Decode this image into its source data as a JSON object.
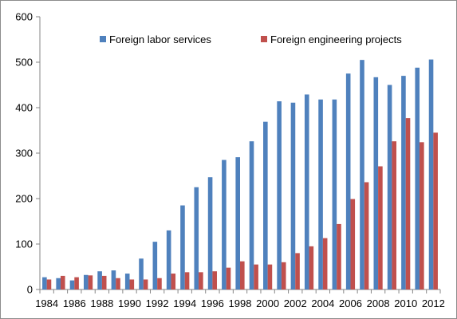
{
  "chart_data": {
    "type": "bar",
    "title": "",
    "xlabel": "",
    "ylabel": "",
    "ylim": [
      0,
      600
    ],
    "yticks": [
      0,
      100,
      200,
      300,
      400,
      500,
      600
    ],
    "grid": false,
    "legend_position": "top",
    "categories": [
      "1984",
      "1985",
      "1986",
      "1987",
      "1988",
      "1989",
      "1990",
      "1991",
      "1992",
      "1993",
      "1994",
      "1995",
      "1996",
      "1997",
      "1998",
      "1999",
      "2000",
      "2001",
      "2002",
      "2003",
      "2004",
      "2005",
      "2006",
      "2007",
      "2008",
      "2009",
      "2010",
      "2011",
      "2012"
    ],
    "xtick_labels": [
      "1984",
      "1986",
      "1988",
      "1990",
      "1992",
      "1994",
      "1996",
      "1998",
      "2000",
      "2002",
      "2004",
      "2006",
      "2008",
      "2010",
      "2012"
    ],
    "series": [
      {
        "name": "Foreign labor services",
        "color": "#4f81bd",
        "values": [
          27,
          25,
          20,
          32,
          40,
          42,
          35,
          68,
          105,
          130,
          185,
          225,
          247,
          285,
          291,
          326,
          369,
          414,
          411,
          429,
          418,
          418,
          475,
          505,
          467,
          450,
          470,
          488,
          506
        ]
      },
      {
        "name": "Foreign engineering projects",
        "color": "#c0504d",
        "values": [
          22,
          30,
          27,
          31,
          30,
          25,
          22,
          22,
          25,
          35,
          38,
          38,
          40,
          48,
          62,
          55,
          55,
          60,
          80,
          95,
          113,
          144,
          199,
          236,
          271,
          326,
          377,
          324,
          345
        ]
      }
    ]
  }
}
